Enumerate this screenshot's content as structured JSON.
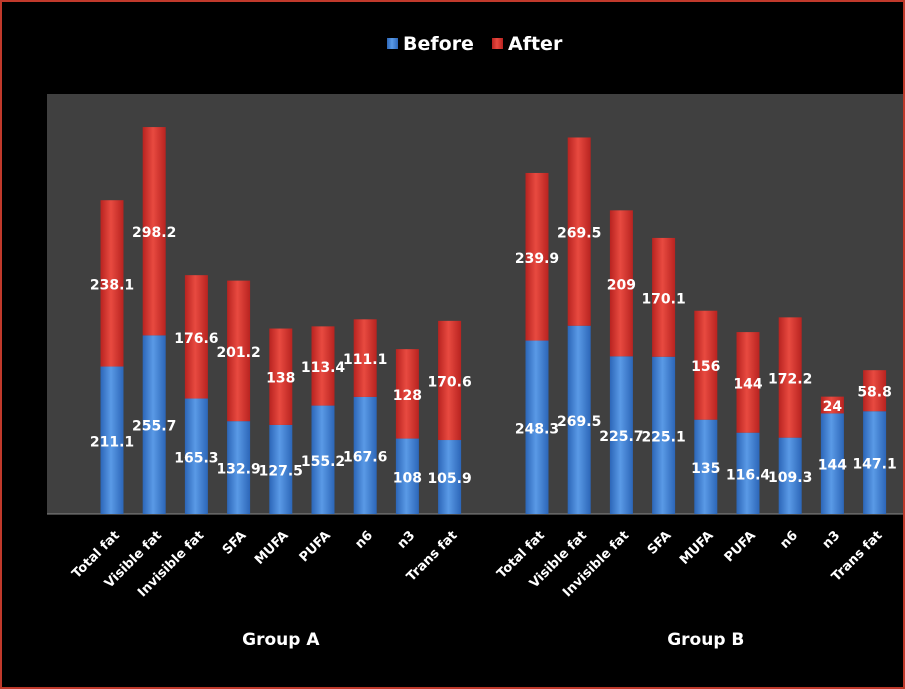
{
  "chart_data": {
    "type": "bar",
    "stacked": true,
    "categories": [
      "Total fat",
      "Visible fat",
      "Invisible fat",
      "SFA",
      "MUFA",
      "PUFA",
      "n6",
      "n3",
      "Trans fat"
    ],
    "groups": [
      "Group A",
      "Group B"
    ],
    "series": [
      {
        "name": "Before",
        "color": "#3a7fd6",
        "values": {
          "Group A": [
            211.1,
            255.7,
            165.3,
            132.9,
            127.5,
            155.2,
            167.6,
            108,
            105.9
          ],
          "Group B": [
            248.3,
            269.5,
            225.7,
            225.1,
            135,
            116.4,
            109.3,
            144,
            147.1
          ]
        }
      },
      {
        "name": "After",
        "color": "#d9332b",
        "values": {
          "Group A": [
            238.1,
            298.2,
            176.6,
            201.2,
            138,
            113.4,
            111.1,
            128,
            170.6
          ],
          "Group B": [
            239.9,
            269.5,
            209,
            170.1,
            156,
            144,
            172.2,
            24,
            58.8
          ]
        }
      }
    ],
    "ylim": [
      0,
      580
    ],
    "legend_position": "top-center",
    "plot_background": "#404040",
    "page_background": "#000000"
  }
}
